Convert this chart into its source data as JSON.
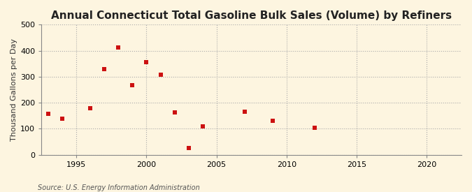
{
  "title": "Annual Connecticut Total Gasoline Bulk Sales (Volume) by Refiners",
  "ylabel": "Thousand Gallons per Day",
  "source": "Source: U.S. Energy Information Administration",
  "background_color": "#fdf5e0",
  "marker_color": "#cc1111",
  "xlim": [
    1992.5,
    2022.5
  ],
  "ylim": [
    0,
    500
  ],
  "yticks": [
    0,
    100,
    200,
    300,
    400,
    500
  ],
  "xticks": [
    1995,
    2000,
    2005,
    2010,
    2015,
    2020
  ],
  "years": [
    1993,
    1994,
    1996,
    1997,
    1998,
    1999,
    2000,
    2001,
    2002,
    2003,
    2004,
    2007,
    2009,
    2012
  ],
  "values": [
    158,
    138,
    178,
    330,
    412,
    268,
    357,
    308,
    163,
    25,
    109,
    165,
    132,
    104
  ],
  "title_fontsize": 11,
  "ylabel_fontsize": 8,
  "tick_fontsize": 8,
  "source_fontsize": 7
}
